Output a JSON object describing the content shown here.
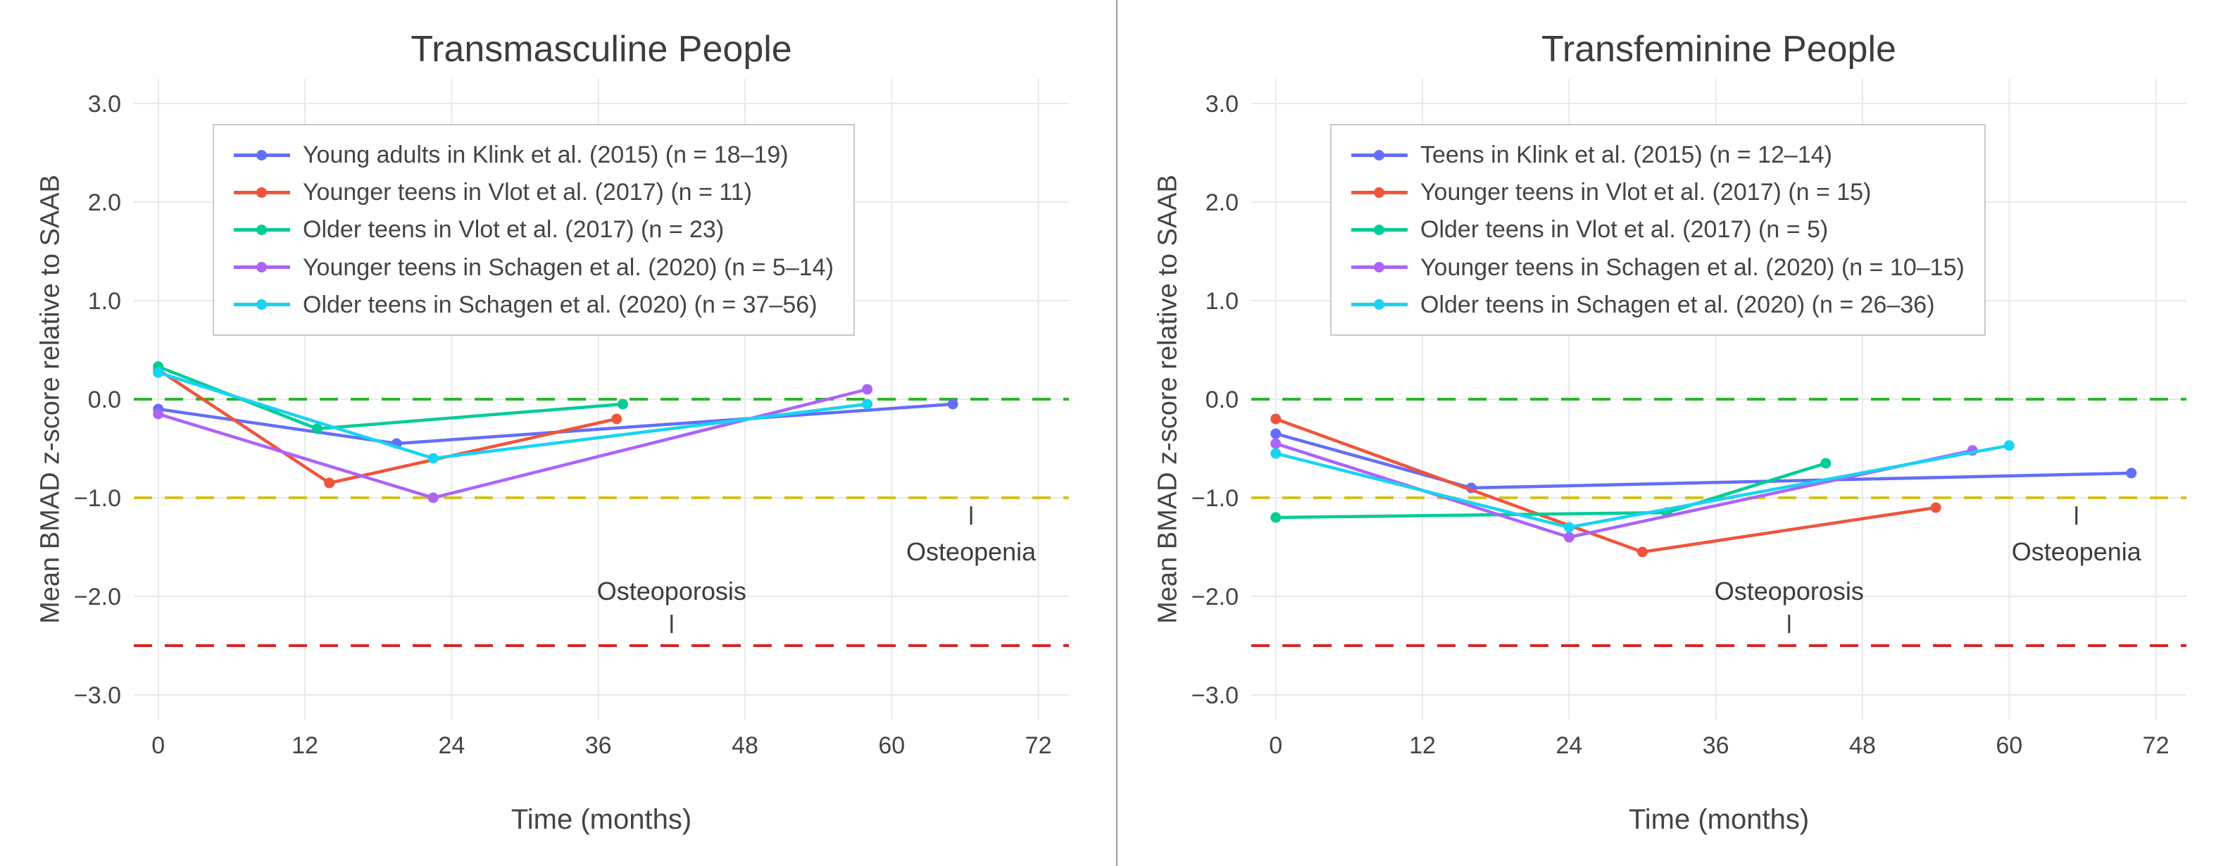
{
  "figure": {
    "divider_color": "#9a9a9a",
    "background_color": "#ffffff"
  },
  "chart_data": [
    {
      "type": "line",
      "title": "Transmasculine People",
      "xlabel": "Time (months)",
      "ylabel": "Mean BMAD z-score relative to SAAB",
      "xlim": [
        -2,
        74.5
      ],
      "ylim": [
        -3.25,
        3.25
      ],
      "grid": true,
      "legend_position": "top-left",
      "x_ticks": [
        0,
        12,
        24,
        36,
        48,
        60,
        72
      ],
      "y_ticks": [
        3,
        2,
        1,
        0,
        -1,
        -2,
        -3
      ],
      "y_tick_labels": [
        "3.0",
        "2.0",
        "1.0",
        "0.0",
        "−1.0",
        "−2.0",
        "−3.0"
      ],
      "reference_lines": [
        {
          "name": "zero-line",
          "y": 0,
          "color": "#2db42d",
          "style": "dashed"
        },
        {
          "name": "osteopenia-threshold",
          "y": -1,
          "color": "#d4c21f",
          "style": "dashed"
        },
        {
          "name": "osteoporosis-threshold",
          "y": -2.5,
          "color": "#d62728",
          "style": "dashed"
        }
      ],
      "annotations": [
        {
          "text": "Osteopenia",
          "x": 66.5,
          "label_y": -1.55,
          "tick_y": -1.18
        },
        {
          "text": "Osteoporosis",
          "x": 42,
          "label_y": -1.95,
          "tick_y": -2.28
        }
      ],
      "series": [
        {
          "name": "Young adults in Klink et al. (2015) (n = 18–19)",
          "color": "#636efa",
          "points": [
            [
              0,
              -0.1
            ],
            [
              19.5,
              -0.45
            ],
            [
              65,
              -0.05
            ]
          ]
        },
        {
          "name": "Younger teens in Vlot et al. (2017) (n = 11)",
          "color": "#ef553b",
          "points": [
            [
              0,
              0.3
            ],
            [
              14,
              -0.85
            ],
            [
              37.5,
              -0.2
            ]
          ]
        },
        {
          "name": "Older teens in Vlot et al. (2017) (n = 23)",
          "color": "#00cc96",
          "points": [
            [
              0,
              0.33
            ],
            [
              13,
              -0.3
            ],
            [
              38,
              -0.05
            ]
          ]
        },
        {
          "name": "Younger teens in Schagen et al. (2020) (n = 5–14)",
          "color": "#ab63fa",
          "points": [
            [
              0,
              -0.15
            ],
            [
              22.5,
              -1.0
            ],
            [
              58,
              0.1
            ]
          ]
        },
        {
          "name": "Older teens in Schagen et al. (2020) (n = 37–56)",
          "color": "#19d3f3",
          "points": [
            [
              0,
              0.27
            ],
            [
              22.5,
              -0.6
            ],
            [
              58,
              -0.05
            ]
          ]
        }
      ]
    },
    {
      "type": "line",
      "title": "Transfeminine People",
      "xlabel": "Time (months)",
      "ylabel": "Mean BMAD z-score relative to SAAB",
      "xlim": [
        -2,
        74.5
      ],
      "ylim": [
        -3.25,
        3.25
      ],
      "grid": true,
      "legend_position": "top-left",
      "x_ticks": [
        0,
        12,
        24,
        36,
        48,
        60,
        72
      ],
      "y_ticks": [
        3,
        2,
        1,
        0,
        -1,
        -2,
        -3
      ],
      "y_tick_labels": [
        "3.0",
        "2.0",
        "1.0",
        "0.0",
        "−1.0",
        "−2.0",
        "−3.0"
      ],
      "reference_lines": [
        {
          "name": "zero-line",
          "y": 0,
          "color": "#2db42d",
          "style": "dashed"
        },
        {
          "name": "osteopenia-threshold",
          "y": -1,
          "color": "#d4c21f",
          "style": "dashed"
        },
        {
          "name": "osteoporosis-threshold",
          "y": -2.5,
          "color": "#d62728",
          "style": "dashed"
        }
      ],
      "annotations": [
        {
          "text": "Osteopenia",
          "x": 65.5,
          "label_y": -1.55,
          "tick_y": -1.18
        },
        {
          "text": "Osteoporosis",
          "x": 42,
          "label_y": -1.95,
          "tick_y": -2.28
        }
      ],
      "series": [
        {
          "name": "Teens in Klink et al. (2015) (n = 12–14)",
          "color": "#636efa",
          "points": [
            [
              0,
              -0.35
            ],
            [
              16,
              -0.9
            ],
            [
              70,
              -0.75
            ]
          ]
        },
        {
          "name": "Younger teens in Vlot et al. (2017) (n = 15)",
          "color": "#ef553b",
          "points": [
            [
              0,
              -0.2
            ],
            [
              30,
              -1.55
            ],
            [
              54,
              -1.1
            ]
          ]
        },
        {
          "name": "Older teens in Vlot et al. (2017) (n = 5)",
          "color": "#00cc96",
          "points": [
            [
              0,
              -1.2
            ],
            [
              32,
              -1.15
            ],
            [
              45,
              -0.65
            ]
          ]
        },
        {
          "name": "Younger teens in Schagen et al. (2020) (n = 10–15)",
          "color": "#ab63fa",
          "points": [
            [
              0,
              -0.45
            ],
            [
              24,
              -1.4
            ],
            [
              57,
              -0.52
            ]
          ]
        },
        {
          "name": "Older teens in Schagen et al. (2020) (n = 26–36)",
          "color": "#19d3f3",
          "points": [
            [
              0,
              -0.55
            ],
            [
              24,
              -1.3
            ],
            [
              60,
              -0.47
            ]
          ]
        }
      ]
    }
  ]
}
